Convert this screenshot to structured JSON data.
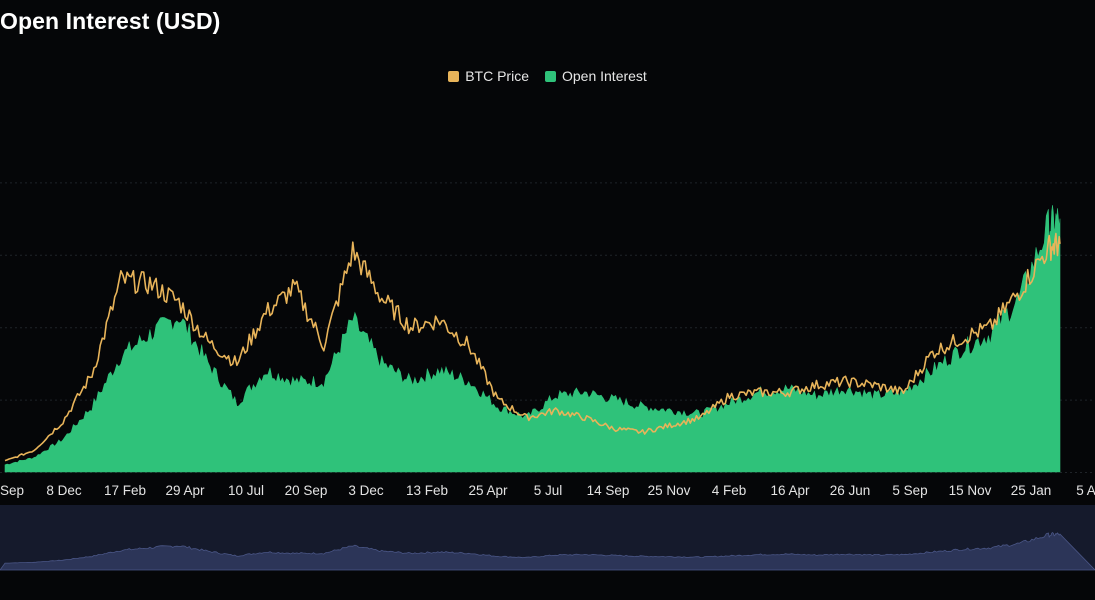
{
  "colors": {
    "background": "#050608",
    "grid": "#1f2328",
    "btc_price": "#e8b45a",
    "open_interest": "#2fc27a",
    "navigator_fill": "#2c3558",
    "navigator_bg": "#151a2c"
  },
  "chart_data": {
    "type": "area",
    "title": "Open Interest (USD)",
    "xlabel": "",
    "ylabel": "",
    "grid": true,
    "legend": "top-center",
    "ylim": [
      0,
      100
    ],
    "x_tick_labels": [
      "Sep",
      "8 Dec",
      "17 Feb",
      "29 Apr",
      "10 Jul",
      "20 Sep",
      "3 Dec",
      "13 Feb",
      "25 Apr",
      "5 Jul",
      "14 Sep",
      "25 Nov",
      "4 Feb",
      "16 Apr",
      "26 Jun",
      "5 Sep",
      "15 Nov",
      "25 Jan",
      "5 A"
    ],
    "x": [
      0,
      0.5,
      1,
      1.5,
      2,
      2.5,
      3,
      3.5,
      4,
      4.5,
      5,
      5.5,
      6,
      6.5,
      7,
      7.5,
      8,
      8.5,
      9,
      9.5,
      10,
      10.5,
      11,
      11.5,
      12,
      12.5,
      13,
      13.5,
      14,
      14.5,
      15,
      15.5,
      16,
      16.5,
      17,
      17.5,
      18,
      18.2
    ],
    "series": [
      {
        "name": "BTC Price",
        "type": "line",
        "values": [
          3,
          6,
          14,
          27,
          53,
          52,
          47,
          36,
          30,
          44,
          51,
          35,
          61,
          48,
          40,
          42,
          35,
          20,
          15,
          17,
          15,
          12,
          11,
          13,
          15,
          21,
          22,
          22,
          24,
          25,
          24,
          22,
          33,
          37,
          40,
          50,
          62,
          63
        ]
      },
      {
        "name": "Open Interest",
        "type": "area",
        "values": [
          2,
          4,
          9,
          18,
          32,
          38,
          43,
          30,
          19,
          28,
          25,
          25,
          42,
          30,
          25,
          28,
          25,
          18,
          15,
          21,
          22,
          20,
          18,
          17,
          16,
          19,
          22,
          23,
          21,
          23,
          21,
          22,
          28,
          34,
          38,
          48,
          68,
          70
        ]
      }
    ]
  }
}
